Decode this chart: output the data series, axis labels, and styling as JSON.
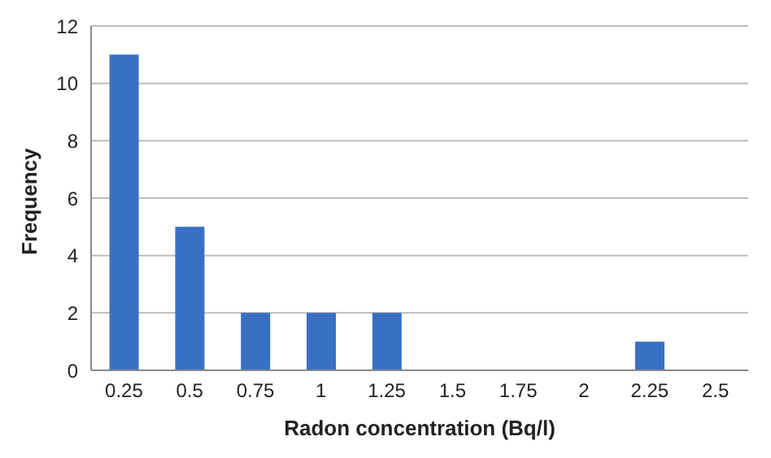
{
  "chart_data": {
    "type": "bar",
    "xlabel": "Radon concentration (Bq/l)",
    "ylabel": "Frequency",
    "categories": [
      "0.25",
      "0.5",
      "0.75",
      "1",
      "1.25",
      "1.5",
      "1.75",
      "2",
      "2.25",
      "2.5"
    ],
    "values": [
      11,
      5,
      2,
      2,
      2,
      0,
      0,
      0,
      1,
      0
    ],
    "color": "#3a70c4",
    "ylim": [
      0,
      12
    ],
    "yticks": [
      0,
      2,
      4,
      6,
      8,
      10,
      12
    ],
    "grid": "y"
  }
}
